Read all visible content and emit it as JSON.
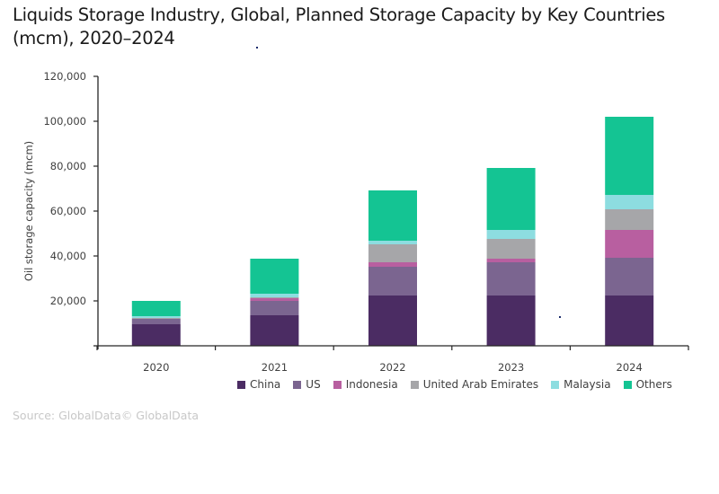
{
  "title": "Liquids Storage Industry, Global, Planned Storage Capacity by Key Countries (mcm), 2020–2024",
  "source": "Source: GlobalData© GlobalData",
  "chart_data": {
    "type": "bar",
    "stacked": true,
    "title": "Liquids Storage Industry, Global, Planned Storage Capacity by Key Countries (mcm), 2020–2024",
    "xlabel": "",
    "ylabel": "Oil storage capacity (mcm)",
    "ylim": [
      0,
      120000
    ],
    "yticks": [
      20000,
      40000,
      60000,
      80000,
      100000,
      120000
    ],
    "ytick_labels": [
      "20,000",
      "40,000",
      "60,000",
      "80,000",
      "100,000",
      "120,000"
    ],
    "grid": false,
    "legend_position": "bottom",
    "categories": [
      "2020",
      "2021",
      "2022",
      "2023",
      "2024"
    ],
    "series": [
      {
        "name": "China",
        "color": "#4b2c63",
        "values": [
          9600,
          13600,
          22400,
          22400,
          22400
        ]
      },
      {
        "name": "US",
        "color": "#7b6590",
        "values": [
          2400,
          6400,
          12800,
          14800,
          16800
        ]
      },
      {
        "name": "Indonesia",
        "color": "#b85fa0",
        "values": [
          0,
          1200,
          2000,
          1600,
          12400
        ]
      },
      {
        "name": "United Arab Emirates",
        "color": "#a6a6a9",
        "values": [
          400,
          400,
          8000,
          8800,
          9200
        ]
      },
      {
        "name": "Malaysia",
        "color": "#8ddde0",
        "values": [
          800,
          1600,
          1600,
          4000,
          6400
        ]
      },
      {
        "name": "Others",
        "color": "#14c493",
        "values": [
          6800,
          15600,
          22400,
          27600,
          34800
        ]
      }
    ]
  }
}
